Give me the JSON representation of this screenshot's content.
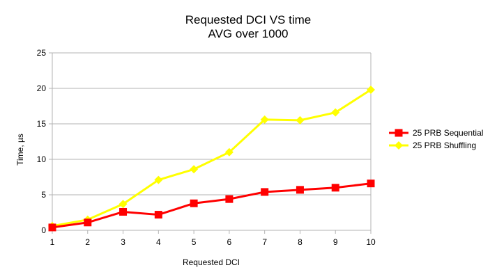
{
  "chart_data": {
    "type": "line",
    "title": "Requested DCI VS time",
    "subtitle": "AVG over 1000",
    "xlabel": "Requested DCI",
    "ylabel": "Time, µs",
    "x": [
      1,
      2,
      3,
      4,
      5,
      6,
      7,
      8,
      9,
      10
    ],
    "ylim": [
      0,
      25
    ],
    "yticks": [
      0,
      5,
      10,
      15,
      20,
      25
    ],
    "grid": true,
    "legend": "right",
    "series": [
      {
        "name": "25 PRB Sequential",
        "color": "#ff0000",
        "marker": "square",
        "values": [
          0.4,
          1.1,
          2.6,
          2.2,
          3.8,
          4.4,
          5.4,
          5.7,
          6.0,
          6.6
        ]
      },
      {
        "name": "25 PRB Shuffling",
        "color": "#ffff00",
        "marker": "diamond",
        "values": [
          0.6,
          1.5,
          3.7,
          7.1,
          8.6,
          11.0,
          15.6,
          15.5,
          16.6,
          19.8
        ]
      }
    ]
  }
}
